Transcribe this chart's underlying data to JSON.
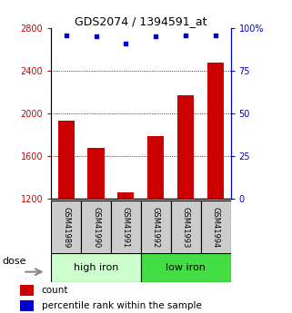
{
  "title": "GDS2074 / 1394591_at",
  "samples": [
    "GSM41989",
    "GSM41990",
    "GSM41991",
    "GSM41992",
    "GSM41993",
    "GSM41994"
  ],
  "counts": [
    1930,
    1680,
    1260,
    1790,
    2170,
    2480
  ],
  "percentile_ranks": [
    96,
    95,
    91,
    95,
    96,
    96
  ],
  "ymin": 1200,
  "ymax": 2800,
  "yticks": [
    1200,
    1600,
    2000,
    2400,
    2800
  ],
  "right_yticks": [
    0,
    25,
    50,
    75,
    100
  ],
  "right_ylabels": [
    "0",
    "25",
    "50",
    "75",
    "100%"
  ],
  "bar_color": "#cc0000",
  "dot_color": "#0000cc",
  "group1_label": "high iron",
  "group2_label": "low iron",
  "group1_color": "#ccffcc",
  "group2_color": "#44dd44",
  "sample_box_color": "#cccccc",
  "dose_label": "dose",
  "legend_count_label": "count",
  "legend_pct_label": "percentile rank within the sample",
  "left_axis_color": "#cc0000",
  "right_axis_color": "#0000cc",
  "gridline_ticks": [
    1600,
    2000,
    2400
  ]
}
